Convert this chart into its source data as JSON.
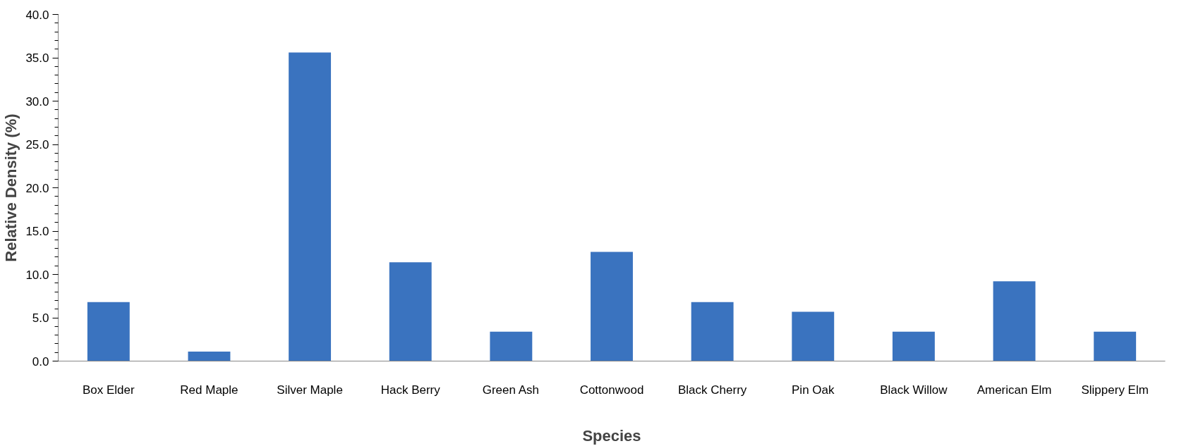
{
  "chart_data": {
    "type": "bar",
    "xlabel": "Species",
    "ylabel": "Relative Density (%)",
    "categories": [
      "Box Elder",
      "Red Maple",
      "Silver Maple",
      "Hack Berry",
      "Green Ash",
      "Cottonwood",
      "Black Cherry",
      "Pin Oak",
      "Black Willow",
      "American Elm",
      "Slippery Elm"
    ],
    "values": [
      6.8,
      1.1,
      35.6,
      11.4,
      3.4,
      12.6,
      6.8,
      5.7,
      3.4,
      9.2,
      3.4
    ],
    "color": "#3a73bf",
    "ylim": [
      0,
      40
    ],
    "yticks": [
      {
        "value": 0,
        "label": "0.0"
      },
      {
        "value": 5,
        "label": "5.0"
      },
      {
        "value": 10,
        "label": "10.0"
      },
      {
        "value": 15,
        "label": "15.0"
      },
      {
        "value": 20,
        "label": "20.0"
      },
      {
        "value": 25,
        "label": "25.0"
      },
      {
        "value": 30,
        "label": "30.0"
      },
      {
        "value": 35,
        "label": "35.0"
      },
      {
        "value": 40,
        "label": "40.0"
      }
    ],
    "grid": false
  }
}
